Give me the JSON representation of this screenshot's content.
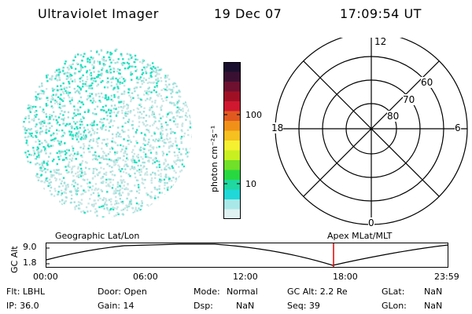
{
  "header": {
    "title": "Ultraviolet Imager",
    "date": "19 Dec 07",
    "time": "17:09:54 UT"
  },
  "colorbar": {
    "unit_label": "photon cm⁻²s⁻¹",
    "ticks": [
      "100",
      "10"
    ],
    "colors": [
      "#1a0f2e",
      "#3a1032",
      "#6e1030",
      "#a01025",
      "#d01830",
      "#e05a20",
      "#f09018",
      "#f5c020",
      "#f5f030",
      "#c8f020",
      "#70e028",
      "#28d840",
      "#20d8a0",
      "#20d8d8",
      "#a8e8e8",
      "#e0f2f2"
    ]
  },
  "imager": {
    "pixel_colors": [
      "#20e0c0",
      "#9fe0dc",
      "#c9e6e4"
    ]
  },
  "polar": {
    "mlt_labels": {
      "top": "12",
      "bottom": "0",
      "left": "18",
      "right": "6"
    },
    "lat_labels": [
      "60",
      "70",
      "80"
    ]
  },
  "timeline": {
    "left_label": "Geographic Lat/Lon",
    "right_label": "Apex MLat/MLT",
    "axis_name": "GC Alt",
    "y_ticks": [
      "9.0",
      "1.8"
    ],
    "x_ticks": [
      "00:00",
      "06:00",
      "12:00",
      "18:00",
      "23:59"
    ],
    "marker_color": "#e00000"
  },
  "info": {
    "flt": "Flt: LBHL",
    "ip": "IP: 36.0",
    "door": "Door: Open",
    "gain": "Gain: 14",
    "mode_label": "Mode:",
    "mode_value": "Normal",
    "dsp_label": "Dsp:",
    "dsp_value": "NaN",
    "gc_alt": "GC Alt: 2.2 Re",
    "seq": "Seq: 39",
    "glat_label": "GLat:",
    "glat_value": "NaN",
    "glon_label": "GLon:",
    "glon_value": "NaN"
  }
}
